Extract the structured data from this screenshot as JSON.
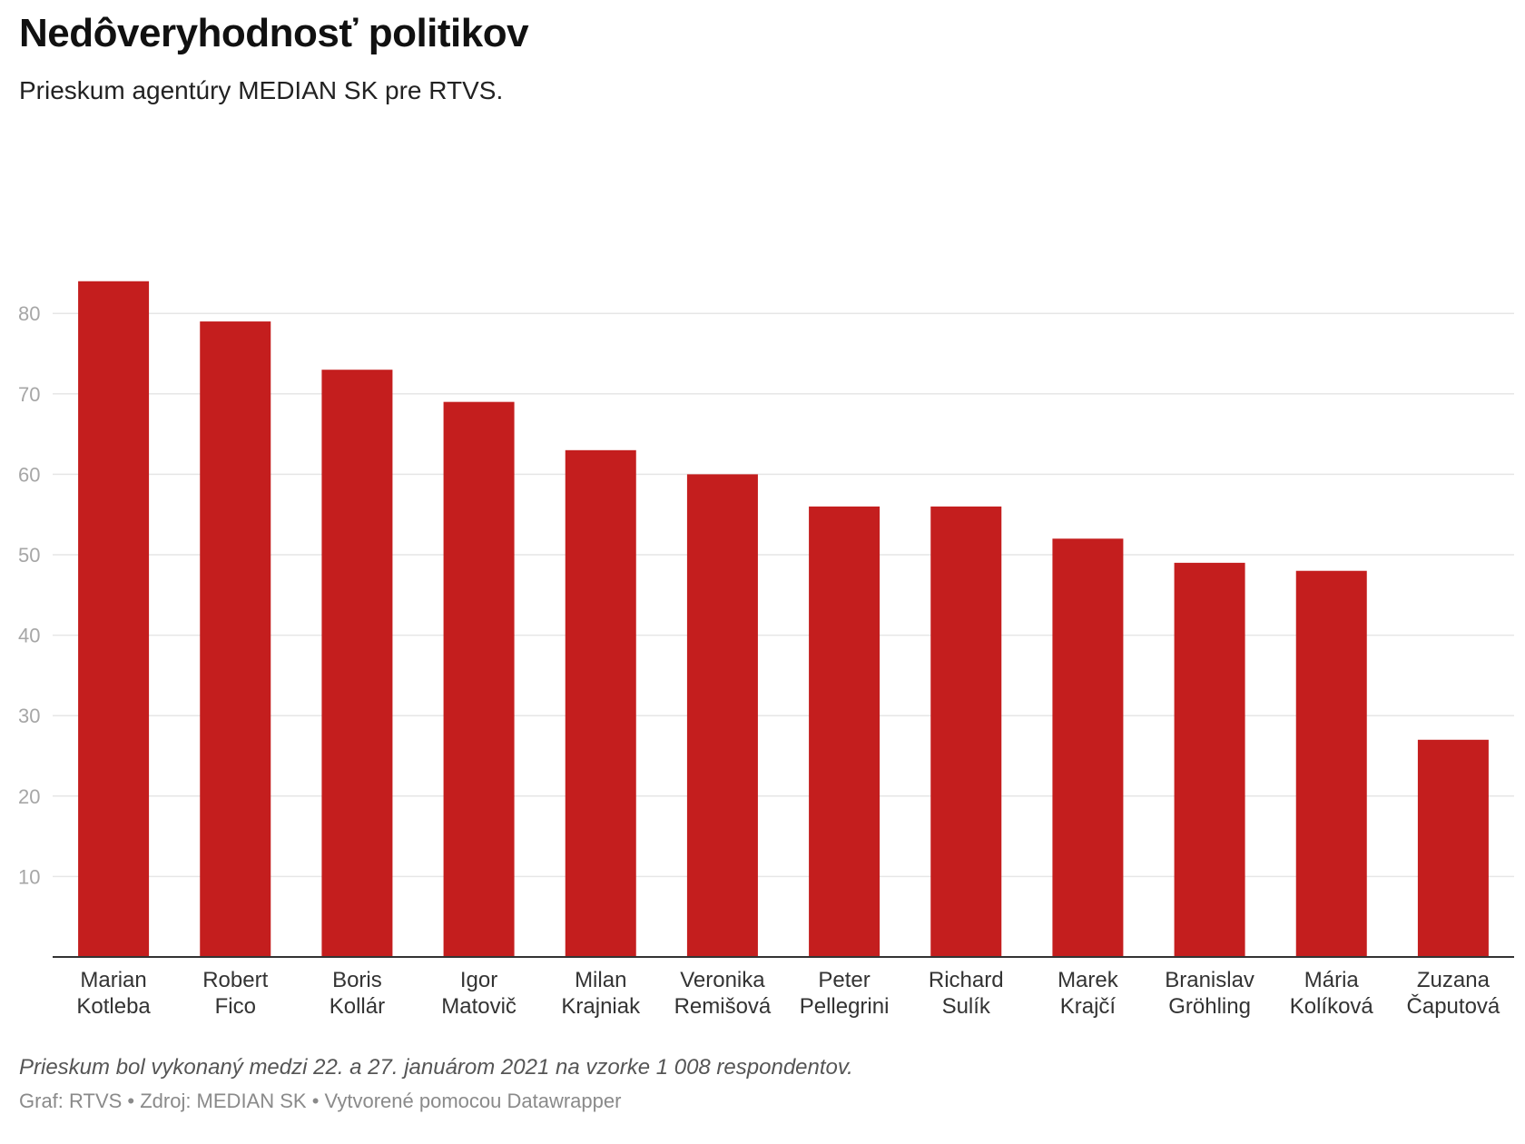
{
  "header": {
    "title": "Nedôveryhodnosť politikov",
    "subtitle": "Prieskum agentúry MEDIAN SK pre RTVS."
  },
  "footer": {
    "notes": "Prieskum bol vykonaný medzi 22. a 27. januárom 2021 na vzorke 1 008 respondentov.",
    "credits": "Graf: RTVS • Zdroj: MEDIAN SK • Vytvorené pomocou Datawrapper"
  },
  "chart_data": {
    "type": "bar",
    "title": "Nedôveryhodnosť politikov",
    "subtitle": "Prieskum agentúry MEDIAN SK pre RTVS.",
    "categories": [
      [
        "Marian",
        "Kotleba"
      ],
      [
        "Robert",
        "Fico"
      ],
      [
        "Boris",
        "Kollár"
      ],
      [
        "Igor",
        "Matovič"
      ],
      [
        "Milan",
        "Krajniak"
      ],
      [
        "Veronika",
        "Remišová"
      ],
      [
        "Peter",
        "Pellegrini"
      ],
      [
        "Richard",
        "Sulík"
      ],
      [
        "Marek",
        "Krajčí"
      ],
      [
        "Branislav",
        "Gröhling"
      ],
      [
        "Mária",
        "Kolíková"
      ],
      [
        "Zuzana",
        "Čaputová"
      ]
    ],
    "values": [
      84,
      79,
      73,
      69,
      63,
      60,
      56,
      56,
      52,
      49,
      48,
      27
    ],
    "ylim": [
      0,
      88
    ],
    "yticks": [
      10,
      20,
      30,
      40,
      50,
      60,
      70,
      80
    ],
    "grid": true,
    "legend": "none",
    "bar_color": "#c41e1e",
    "grid_color": "#e6e6e6",
    "axis_color": "#333333"
  }
}
